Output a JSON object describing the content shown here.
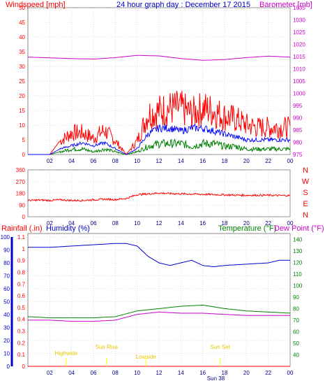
{
  "title": "24 hour graph day : December 17 2015",
  "colors": {
    "wind": "#ff0000",
    "gust": "#ff0000",
    "avg": "#0000ff",
    "min": "#008000",
    "baro": "#cc00cc",
    "hum": "#0000cc",
    "temp": "#008000",
    "dew": "#cc00cc",
    "rain": "#ff0000",
    "tide": "#ffff00",
    "frame": "#888888"
  },
  "panel1": {
    "left_label": "Windspeed [mph]",
    "right_label": "Barometer [mb]",
    "y_left_ticks": [
      "0",
      "5",
      "10",
      "15",
      "20",
      "25",
      "30",
      "35",
      "40",
      "45",
      "50"
    ],
    "y_right_ticks": [
      "975",
      "980",
      "985",
      "990",
      "995",
      "1000",
      "1005",
      "1010",
      "1015",
      "1020",
      "1025",
      "1030",
      "1035"
    ]
  },
  "panel2": {
    "y_ticks": [
      "0",
      "90",
      "180",
      "270",
      "360"
    ],
    "compass": [
      "N",
      "W",
      "S",
      "E",
      "N"
    ]
  },
  "panel3": {
    "rain_label": "Rainfall (.in)",
    "hum_label": "Humidity (%)",
    "temp_label": "Temperature (°F)",
    "dew_label": "Dew Point (°F)",
    "rain_ticks": [
      "0",
      "0.1",
      "0.2",
      "0.3",
      "0.4",
      "0.5",
      "0.6",
      "0.7",
      "0.8",
      "0.9",
      "1",
      "1.1"
    ],
    "hum_ticks": [
      "0",
      "10",
      "20",
      "30",
      "40",
      "50",
      "60",
      "70",
      "80",
      "90",
      "100"
    ],
    "temp_ticks": [
      "40",
      "50",
      "60",
      "70",
      "80",
      "90",
      "100",
      "110",
      "120",
      "130",
      "140"
    ],
    "events": [
      "Highwide",
      "Sun Rise",
      "Lowside",
      "Sun Set"
    ],
    "suntime": "Sun 38"
  },
  "chart_data": [
    {
      "type": "line",
      "title": "24 hour graph day : December 17 2015",
      "xlabel": "",
      "ylabel": "Windspeed [mph]",
      "y2label": "Barometer [mb]",
      "x_ticks": [
        "02",
        "04",
        "06",
        "08",
        "10",
        "12",
        "14",
        "16",
        "18",
        "20",
        "22",
        "00"
      ],
      "ylim": [
        0,
        50
      ],
      "y2lim": [
        975,
        1035
      ],
      "grid": true,
      "series": [
        {
          "name": "Windspeed [mph]",
          "axis": "left",
          "x": [
            0,
            1,
            2,
            3,
            4,
            5,
            6,
            7,
            8,
            9,
            10,
            11,
            12,
            13,
            14,
            15,
            16,
            17,
            18,
            19,
            20,
            21,
            22,
            23,
            24
          ],
          "values": [
            0,
            0,
            0,
            5,
            8,
            8,
            6,
            9,
            5,
            0,
            5,
            15,
            16,
            17,
            17,
            15,
            17,
            16,
            14,
            13,
            11,
            10,
            10,
            10,
            10
          ]
        },
        {
          "name": "",
          "axis": "left",
          "x": [
            0,
            1,
            2,
            3,
            4,
            5,
            6,
            7,
            8,
            9,
            10,
            11,
            12,
            13,
            14,
            15,
            16,
            17,
            18,
            19,
            20,
            21,
            22,
            23,
            24
          ],
          "values": [
            0,
            0,
            0,
            2,
            3,
            4,
            3,
            4,
            2,
            0,
            2,
            7,
            9,
            9,
            8,
            9,
            9,
            8,
            7,
            6,
            5,
            5,
            5,
            5,
            5
          ]
        },
        {
          "name": "",
          "axis": "left",
          "x": [
            0,
            1,
            2,
            3,
            4,
            5,
            6,
            7,
            8,
            9,
            10,
            11,
            12,
            13,
            14,
            15,
            16,
            17,
            18,
            19,
            20,
            21,
            22,
            23,
            24
          ],
          "values": [
            0,
            0,
            0,
            1,
            2,
            2,
            1,
            2,
            1,
            0,
            1,
            3,
            4,
            4,
            4,
            3,
            4,
            4,
            3,
            3,
            2,
            2,
            2,
            2,
            2
          ]
        },
        {
          "name": "Barometer [mb]",
          "axis": "right",
          "x": [
            0,
            2,
            4,
            6,
            8,
            10,
            12,
            14,
            16,
            18,
            20,
            22,
            24
          ],
          "values": [
            1014.8,
            1014.5,
            1014.2,
            1014.0,
            1014.6,
            1015.5,
            1015.3,
            1014.2,
            1013.5,
            1013.8,
            1014.6,
            1015.2,
            1014.8
          ]
        }
      ]
    },
    {
      "type": "scatter",
      "title": "",
      "ylabel": "Wind direction",
      "x_ticks": [
        "02",
        "04",
        "06",
        "08",
        "10",
        "12",
        "14",
        "16",
        "18",
        "20",
        "22",
        "00"
      ],
      "ylim": [
        0,
        360
      ],
      "grid": true,
      "series": [
        {
          "name": "",
          "x": [
            0,
            1,
            2,
            3,
            4,
            5,
            6,
            7,
            8,
            9,
            10,
            11,
            12,
            13,
            14,
            15,
            16,
            17,
            18,
            19,
            20,
            21,
            22,
            23,
            24
          ],
          "values": [
            125,
            128,
            125,
            130,
            125,
            125,
            130,
            135,
            132,
            140,
            170,
            175,
            182,
            178,
            176,
            174,
            172,
            170,
            168,
            166,
            165,
            165,
            165,
            163,
            163
          ]
        }
      ]
    },
    {
      "type": "line",
      "title": "",
      "x_ticks": [
        "02",
        "04",
        "06",
        "08",
        "10",
        "12",
        "14",
        "16",
        "18",
        "20",
        "22",
        "00"
      ],
      "ylim": [
        0,
        100
      ],
      "y2lim": [
        30,
        145
      ],
      "grid": true,
      "series": [
        {
          "name": "Humidity (%)",
          "axis": "humidity",
          "x": [
            0,
            2,
            4,
            6,
            8,
            9,
            10,
            11,
            12,
            13,
            14,
            15,
            16,
            17,
            18,
            20,
            22,
            23,
            24
          ],
          "values": [
            92,
            92,
            93,
            94,
            95,
            95,
            93,
            85,
            80,
            78,
            80,
            82,
            78,
            77,
            78,
            79,
            80,
            82,
            82
          ]
        },
        {
          "name": "Temperature (°F)",
          "axis": "temp",
          "x": [
            0,
            2,
            4,
            6,
            8,
            10,
            12,
            14,
            16,
            18,
            20,
            22,
            24
          ],
          "values": [
            73,
            72,
            72,
            72,
            73,
            78,
            80,
            82,
            83,
            80,
            78,
            77,
            76
          ]
        },
        {
          "name": "Dew Point (°F)",
          "axis": "temp",
          "x": [
            0,
            2,
            4,
            6,
            8,
            10,
            12,
            14,
            16,
            18,
            20,
            22,
            24
          ],
          "values": [
            70,
            70,
            69,
            69,
            70,
            75,
            77,
            76,
            76,
            75,
            74,
            74,
            74
          ]
        },
        {
          "name": "Rainfall (.in)",
          "axis": "rain",
          "x": [
            0,
            24
          ],
          "values": [
            0,
            0
          ]
        }
      ]
    }
  ]
}
